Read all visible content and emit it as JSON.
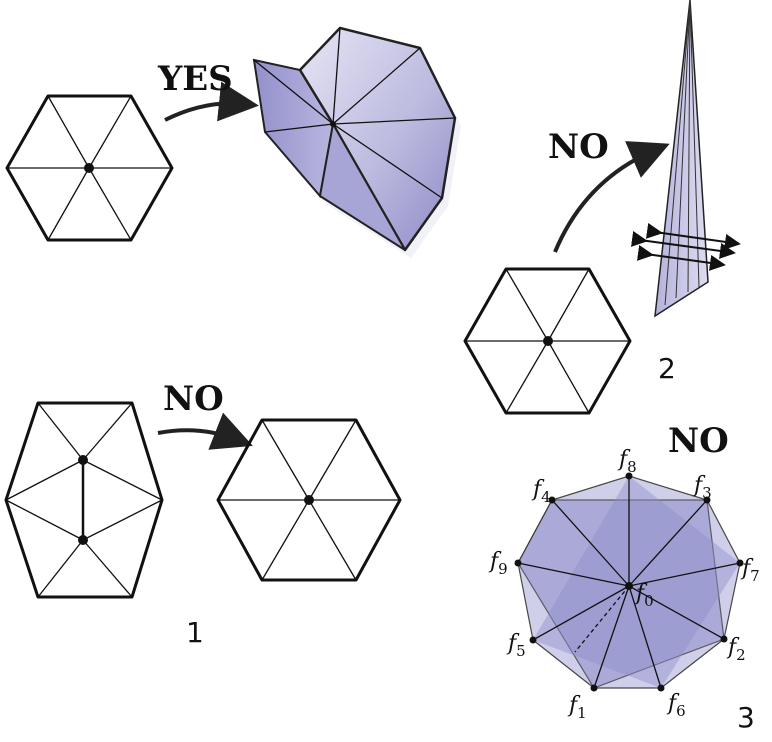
{
  "labels": {
    "yes": "YES",
    "no_top": "NO",
    "no_bottom": "NO",
    "no_star": "NO"
  },
  "panel_numbers": {
    "one": "1",
    "two": "2",
    "three": "3"
  },
  "face_labels": [
    {
      "base": "f",
      "sub": "0"
    },
    {
      "base": "f",
      "sub": "1"
    },
    {
      "base": "f",
      "sub": "2"
    },
    {
      "base": "f",
      "sub": "3"
    },
    {
      "base": "f",
      "sub": "4"
    },
    {
      "base": "f",
      "sub": "5"
    },
    {
      "base": "f",
      "sub": "6"
    },
    {
      "base": "f",
      "sub": "7"
    },
    {
      "base": "f",
      "sub": "8"
    },
    {
      "base": "f",
      "sub": "9"
    }
  ],
  "colors": {
    "fill_purple": "#c9c8e6",
    "fill_purple_dark": "#9d9bd0",
    "stroke": "#111111"
  }
}
